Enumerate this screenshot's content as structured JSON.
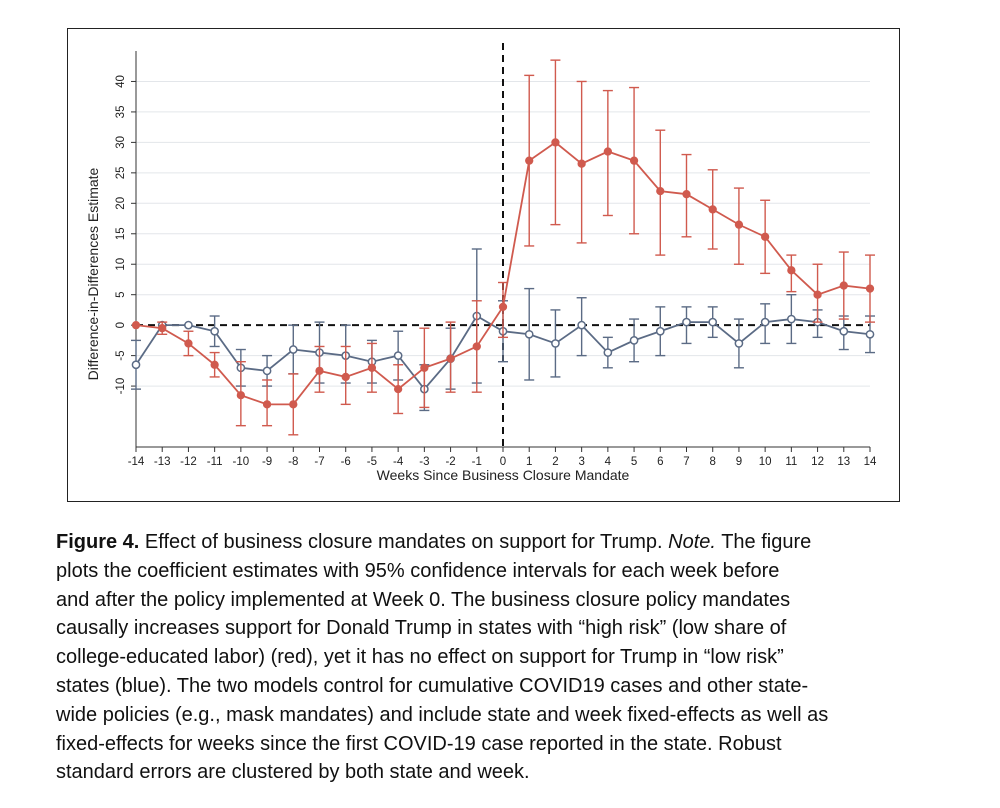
{
  "chart_data": {
    "type": "line",
    "xlabel": "Weeks Since Business Closure Mandate",
    "ylabel": "Difference-in-Differences Estimate",
    "xlim": [
      -14,
      14
    ],
    "ylim": [
      -20,
      45
    ],
    "x_ticks": [
      -14,
      -13,
      -12,
      -11,
      -10,
      -9,
      -8,
      -7,
      -6,
      -5,
      -4,
      -3,
      -2,
      -1,
      0,
      1,
      2,
      3,
      4,
      5,
      6,
      7,
      8,
      9,
      10,
      11,
      12,
      13,
      14
    ],
    "y_ticks": [
      -10,
      -5,
      0,
      5,
      10,
      15,
      20,
      25,
      30,
      35,
      40
    ],
    "y_tick_labels": [
      "-10",
      "-5",
      "0",
      "5",
      "10",
      "15",
      "20",
      "25",
      "30",
      "35",
      "40"
    ],
    "reference_lines": {
      "horizontal": 0,
      "vertical": 0,
      "style": "dashed"
    },
    "grid": "horizontal",
    "legend": "none",
    "series": [
      {
        "color": "#d05a4e",
        "marker": "filled-circle",
        "x": [
          -14,
          -13,
          -12,
          -11,
          -10,
          -9,
          -8,
          -7,
          -6,
          -5,
          -4,
          -3,
          -2,
          -1,
          0,
          1,
          2,
          3,
          4,
          5,
          6,
          7,
          8,
          9,
          10,
          11,
          12,
          13,
          14
        ],
        "y": [
          0,
          -0.5,
          -3,
          -6.5,
          -11.5,
          -13,
          -13,
          -7.5,
          -8.5,
          -7,
          -10.5,
          -7,
          -5.5,
          -3.5,
          3,
          27,
          30,
          26.5,
          28.5,
          27,
          22,
          21.5,
          19,
          16.5,
          14.5,
          9,
          5,
          6.5,
          6
        ],
        "ci_low": [
          null,
          -1.5,
          -5,
          -8.5,
          -16.5,
          -16.5,
          -18,
          -11,
          -13,
          -11,
          -14.5,
          -13.5,
          -11,
          -11,
          -2,
          13,
          16.5,
          13.5,
          18,
          15,
          11.5,
          14.5,
          12.5,
          10,
          8.5,
          5.5,
          0.5,
          1,
          0.5
        ],
        "ci_high": [
          null,
          0.5,
          -1,
          -4.5,
          -6,
          -9,
          -8,
          -3.5,
          -3.5,
          -3,
          -6.5,
          -0.5,
          0.5,
          4,
          7,
          41,
          43.5,
          40,
          38.5,
          39,
          32,
          28,
          25.5,
          22.5,
          20.5,
          11.5,
          10,
          12,
          11.5
        ]
      },
      {
        "color": "#5b6b85",
        "marker": "hollow-circle",
        "x": [
          -14,
          -13,
          -12,
          -11,
          -10,
          -9,
          -8,
          -7,
          -6,
          -5,
          -4,
          -3,
          -2,
          -1,
          0,
          1,
          2,
          3,
          4,
          5,
          6,
          7,
          8,
          9,
          10,
          11,
          12,
          13,
          14
        ],
        "y": [
          -6.5,
          0,
          0,
          -1,
          -7,
          -7.5,
          -4,
          -4.5,
          -5,
          -6,
          -5,
          -10.5,
          -5.5,
          1.5,
          -1,
          -1.5,
          -3,
          0,
          -4.5,
          -2.5,
          -1,
          0.5,
          0.5,
          -3,
          0.5,
          1,
          0.5,
          -1,
          -1.5
        ],
        "ci_low": [
          -10.5,
          null,
          null,
          -3.5,
          -10,
          -10,
          -8,
          -9.5,
          -9.5,
          -9.5,
          -9,
          -14,
          -10.5,
          -9.5,
          -6,
          -9,
          -8.5,
          -5,
          -7,
          -6,
          -5,
          -3,
          -2,
          -7,
          -3,
          -3,
          -2,
          -4,
          -4.5
        ],
        "ci_high": [
          -2.5,
          null,
          null,
          1.5,
          -4,
          -5,
          0,
          0.5,
          0,
          -2.5,
          -1,
          -6.5,
          -0.5,
          12.5,
          4,
          6,
          2.5,
          4.5,
          -2,
          1,
          3,
          3,
          3,
          1,
          3.5,
          5,
          2.5,
          1.5,
          1.5
        ]
      }
    ]
  },
  "caption": {
    "figure_label": "Figure 4.",
    "lead": "Effect of business closure mandates on support for Trump.",
    "note_label": "Note.",
    "lines": [
      "The figure",
      "plots the coefficient estimates with 95% confidence intervals for each week before",
      "and after the policy implemented at Week 0. The business closure policy mandates",
      "causally increases support for Donald Trump in states with “high risk” (low share of",
      "college-educated labor) (red), yet it has no effect on support for Trump in “low risk”",
      "states (blue). The two models control for cumulative COVID19 cases and other state-",
      "wide policies (e.g., mask mandates) and include state and week fixed-effects as well as",
      "fixed-effects for weeks since the first COVID-19 case reported in the state. Robust",
      "standard errors are clustered by both state and week."
    ]
  }
}
